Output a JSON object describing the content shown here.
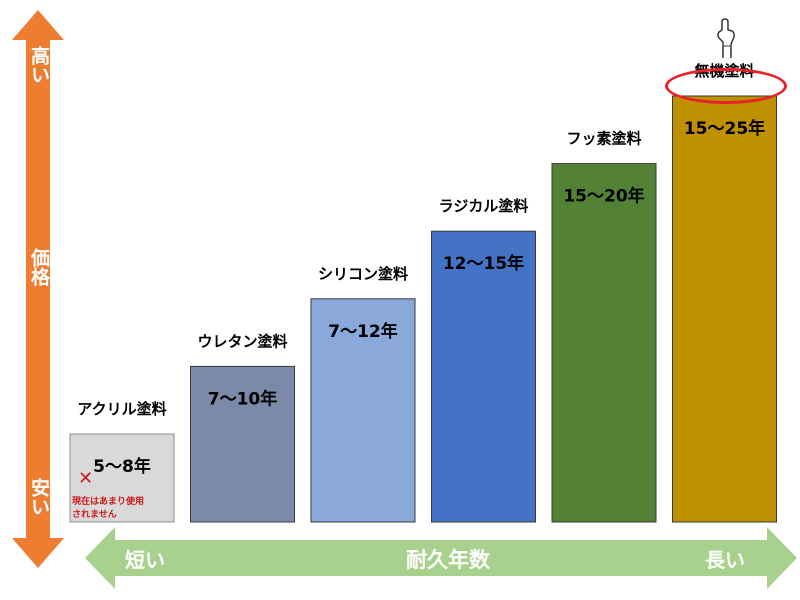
{
  "chart_data": {
    "type": "bar",
    "categories": [
      "アクリル塗料",
      "ウレタン塗料",
      "シリコン塗料",
      "ラジカル塗料",
      "フッ素塗料",
      "無機塗料"
    ],
    "value_labels": [
      "5～8年",
      "7～10年",
      "7～12年",
      "12～15年",
      "15～20年",
      "15～25年"
    ],
    "durability_years": [
      [
        5,
        8
      ],
      [
        7,
        10
      ],
      [
        7,
        12
      ],
      [
        12,
        15
      ],
      [
        15,
        20
      ],
      [
        15,
        25
      ]
    ],
    "relative_price_level": [
      1,
      2,
      3,
      4,
      5,
      6
    ],
    "colors": [
      "#d9d9d9",
      "#7a8aa8",
      "#8aa8d9",
      "#4472c4",
      "#548235",
      "#bf9000"
    ],
    "xlabel": "耐久年数",
    "x_low_label": "短い",
    "x_high_label": "長い",
    "ylabel": "価格",
    "y_low_label": "安い",
    "y_high_label": "高い",
    "highlighted_category": "無機塗料"
  },
  "notes": {
    "cross_mark": "✕",
    "acrylic_note_line1": "現在はあまり使用",
    "acrylic_note_line2": "されません"
  },
  "colors": {
    "price_arrow": "#ed7d31",
    "duration_arrow": "#a9d18e",
    "highlight_ring": "#e8212a",
    "note_text": "#cc1a1a"
  }
}
